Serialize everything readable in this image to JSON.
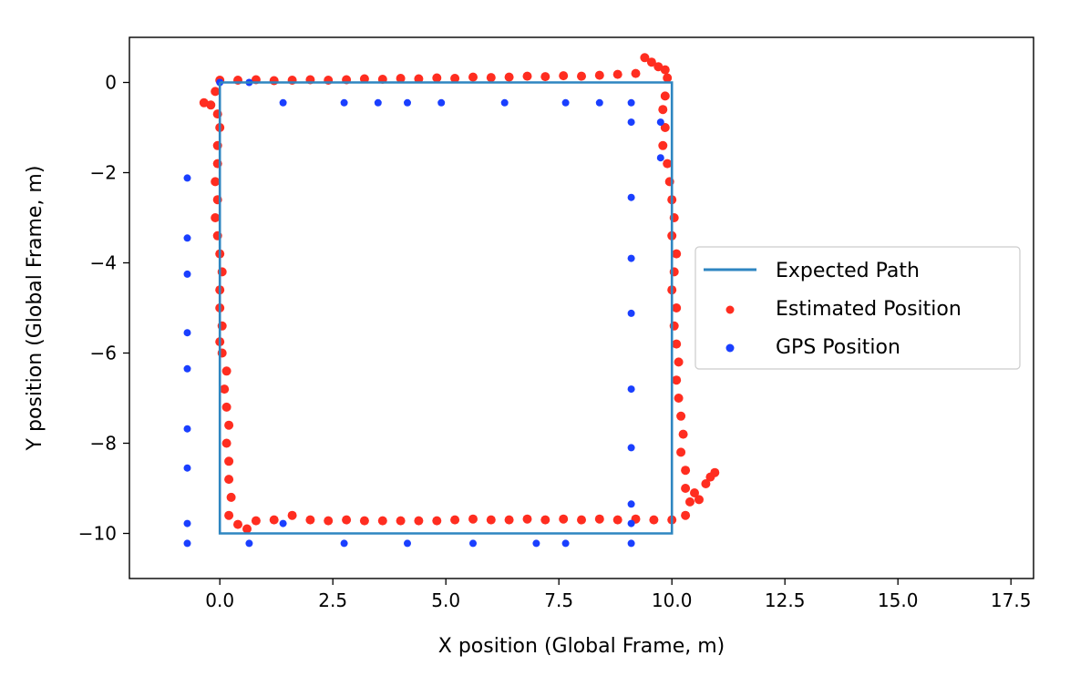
{
  "chart_data": {
    "type": "scatter",
    "xlabel": "X position (Global Frame, m)",
    "ylabel": "Y position (Global Frame, m)",
    "xlim": [
      -2.0,
      18.0
    ],
    "ylim": [
      -11.0,
      1.0
    ],
    "xticks": [
      0.0,
      2.5,
      5.0,
      7.5,
      10.0,
      12.5,
      15.0,
      17.5
    ],
    "xtick_labels": [
      "0.0",
      "2.5",
      "5.0",
      "7.5",
      "10.0",
      "12.5",
      "15.0",
      "17.5"
    ],
    "yticks": [
      0,
      -2,
      -4,
      -6,
      -8,
      -10
    ],
    "ytick_labels": [
      "0",
      "−2",
      "−4",
      "−6",
      "−8",
      "−10"
    ],
    "grid": false,
    "legend_position": "center-right",
    "series": [
      {
        "name": "Expected Path",
        "kind": "line",
        "color": "#2e86c1",
        "points": [
          [
            0,
            0
          ],
          [
            10,
            0
          ],
          [
            10,
            -10
          ],
          [
            0,
            -10
          ],
          [
            0,
            0
          ]
        ]
      },
      {
        "name": "Estimated Position",
        "kind": "scatter",
        "color": "#ff2d20",
        "points": [
          [
            0.0,
            0.05
          ],
          [
            0.4,
            0.05
          ],
          [
            0.8,
            0.06
          ],
          [
            1.2,
            0.04
          ],
          [
            1.6,
            0.05
          ],
          [
            2.0,
            0.06
          ],
          [
            2.4,
            0.05
          ],
          [
            2.8,
            0.06
          ],
          [
            3.2,
            0.08
          ],
          [
            3.6,
            0.07
          ],
          [
            4.0,
            0.09
          ],
          [
            4.4,
            0.08
          ],
          [
            4.8,
            0.1
          ],
          [
            5.2,
            0.09
          ],
          [
            5.6,
            0.12
          ],
          [
            6.0,
            0.11
          ],
          [
            6.4,
            0.12
          ],
          [
            6.8,
            0.14
          ],
          [
            7.2,
            0.13
          ],
          [
            7.6,
            0.15
          ],
          [
            8.0,
            0.14
          ],
          [
            8.4,
            0.16
          ],
          [
            8.8,
            0.18
          ],
          [
            9.2,
            0.2
          ],
          [
            9.4,
            0.55
          ],
          [
            9.55,
            0.45
          ],
          [
            9.7,
            0.35
          ],
          [
            9.85,
            0.28
          ],
          [
            9.9,
            0.1
          ],
          [
            9.85,
            -0.3
          ],
          [
            9.8,
            -0.6
          ],
          [
            9.85,
            -1.0
          ],
          [
            9.8,
            -1.4
          ],
          [
            9.9,
            -1.8
          ],
          [
            9.95,
            -2.2
          ],
          [
            10.0,
            -2.6
          ],
          [
            10.05,
            -3.0
          ],
          [
            10.0,
            -3.4
          ],
          [
            10.1,
            -3.8
          ],
          [
            10.05,
            -4.2
          ],
          [
            10.0,
            -4.6
          ],
          [
            10.1,
            -5.0
          ],
          [
            10.05,
            -5.4
          ],
          [
            10.1,
            -5.8
          ],
          [
            10.15,
            -6.2
          ],
          [
            10.1,
            -6.6
          ],
          [
            10.15,
            -7.0
          ],
          [
            10.2,
            -7.4
          ],
          [
            10.25,
            -7.8
          ],
          [
            10.2,
            -8.2
          ],
          [
            10.3,
            -8.6
          ],
          [
            10.3,
            -9.0
          ],
          [
            10.4,
            -9.3
          ],
          [
            10.5,
            -9.1
          ],
          [
            10.6,
            -9.25
          ],
          [
            10.75,
            -8.9
          ],
          [
            10.85,
            -8.75
          ],
          [
            10.95,
            -8.65
          ],
          [
            10.3,
            -9.6
          ],
          [
            10.0,
            -9.7
          ],
          [
            9.6,
            -9.7
          ],
          [
            9.2,
            -9.68
          ],
          [
            8.8,
            -9.7
          ],
          [
            8.4,
            -9.68
          ],
          [
            8.0,
            -9.7
          ],
          [
            7.6,
            -9.68
          ],
          [
            7.2,
            -9.7
          ],
          [
            6.8,
            -9.68
          ],
          [
            6.4,
            -9.7
          ],
          [
            6.0,
            -9.7
          ],
          [
            5.6,
            -9.68
          ],
          [
            5.2,
            -9.7
          ],
          [
            4.8,
            -9.72
          ],
          [
            4.4,
            -9.72
          ],
          [
            4.0,
            -9.72
          ],
          [
            3.6,
            -9.72
          ],
          [
            3.2,
            -9.72
          ],
          [
            2.8,
            -9.7
          ],
          [
            2.4,
            -9.72
          ],
          [
            2.0,
            -9.7
          ],
          [
            1.6,
            -9.6
          ],
          [
            1.2,
            -9.7
          ],
          [
            0.8,
            -9.72
          ],
          [
            0.6,
            -9.9
          ],
          [
            0.4,
            -9.8
          ],
          [
            0.2,
            -9.6
          ],
          [
            0.25,
            -9.2
          ],
          [
            0.2,
            -8.8
          ],
          [
            0.2,
            -8.4
          ],
          [
            0.15,
            -8.0
          ],
          [
            0.2,
            -7.6
          ],
          [
            0.15,
            -7.2
          ],
          [
            0.1,
            -6.8
          ],
          [
            0.15,
            -6.4
          ],
          [
            0.05,
            -6.0
          ],
          [
            0.0,
            -5.75
          ],
          [
            0.05,
            -5.4
          ],
          [
            0.0,
            -5.0
          ],
          [
            0.0,
            -4.6
          ],
          [
            0.05,
            -4.2
          ],
          [
            0.0,
            -3.8
          ],
          [
            -0.05,
            -3.4
          ],
          [
            -0.1,
            -3.0
          ],
          [
            -0.05,
            -2.6
          ],
          [
            -0.1,
            -2.2
          ],
          [
            -0.05,
            -1.8
          ],
          [
            -0.05,
            -1.4
          ],
          [
            0.0,
            -1.0
          ],
          [
            -0.05,
            -0.7
          ],
          [
            -0.2,
            -0.5
          ],
          [
            -0.35,
            -0.45
          ],
          [
            -0.1,
            -0.2
          ]
        ]
      },
      {
        "name": "GPS Position",
        "kind": "scatter",
        "color": "#1a3fff",
        "points": [
          [
            0.0,
            0.0
          ],
          [
            0.65,
            0.0
          ],
          [
            1.4,
            -0.45
          ],
          [
            2.75,
            -0.45
          ],
          [
            3.5,
            -0.45
          ],
          [
            4.15,
            -0.45
          ],
          [
            4.9,
            -0.45
          ],
          [
            6.3,
            -0.45
          ],
          [
            7.65,
            -0.45
          ],
          [
            8.4,
            -0.45
          ],
          [
            9.1,
            -0.45
          ],
          [
            9.1,
            -0.88
          ],
          [
            9.75,
            -0.88
          ],
          [
            9.75,
            -1.67
          ],
          [
            9.1,
            -2.55
          ],
          [
            9.1,
            -3.9
          ],
          [
            9.1,
            -5.12
          ],
          [
            9.1,
            -6.8
          ],
          [
            9.1,
            -8.1
          ],
          [
            9.1,
            -9.35
          ],
          [
            9.1,
            -9.78
          ],
          [
            9.1,
            -10.22
          ],
          [
            7.65,
            -10.22
          ],
          [
            7.0,
            -10.22
          ],
          [
            5.6,
            -10.22
          ],
          [
            4.15,
            -10.22
          ],
          [
            2.75,
            -10.22
          ],
          [
            1.4,
            -9.78
          ],
          [
            0.65,
            -10.22
          ],
          [
            -0.72,
            -10.22
          ],
          [
            -0.72,
            -9.78
          ],
          [
            -0.72,
            -8.55
          ],
          [
            -0.72,
            -7.68
          ],
          [
            -0.72,
            -6.35
          ],
          [
            -0.72,
            -5.55
          ],
          [
            -0.72,
            -4.25
          ],
          [
            -0.72,
            -3.45
          ],
          [
            -0.72,
            -2.12
          ]
        ]
      }
    ]
  }
}
